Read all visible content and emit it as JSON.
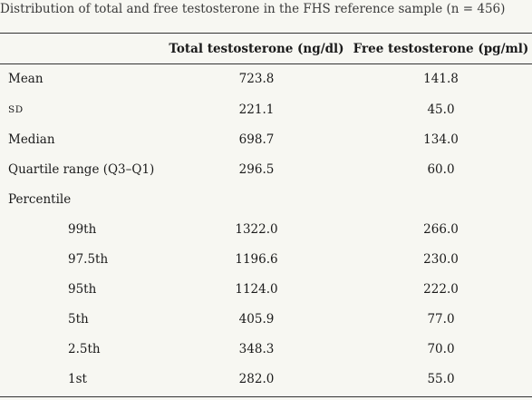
{
  "caption": "Distribution of total and free testosterone in the FHS reference sample (n = 456)",
  "table": {
    "headers": [
      "",
      "Total testosterone (ng/dl)",
      "Free testosterone (pg/ml)"
    ],
    "rows": [
      {
        "label": "Mean",
        "total": "723.8",
        "free": "141.8"
      },
      {
        "label": "SD",
        "total": "221.1",
        "free": "45.0"
      },
      {
        "label": "Median",
        "total": "698.7",
        "free": "134.0"
      },
      {
        "label": "Quartile range (Q3–Q1)",
        "total": "296.5",
        "free": "60.0"
      },
      {
        "label": "Percentile",
        "total": "",
        "free": ""
      },
      {
        "label": "99th",
        "total": "1322.0",
        "free": "266.0"
      },
      {
        "label": "97.5th",
        "total": "1196.6",
        "free": "230.0"
      },
      {
        "label": "95th",
        "total": "1124.0",
        "free": "222.0"
      },
      {
        "label": "5th",
        "total": "405.9",
        "free": "77.0"
      },
      {
        "label": "2.5th",
        "total": "348.3",
        "free": "70.0"
      },
      {
        "label": "1st",
        "total": "282.0",
        "free": "55.0"
      }
    ]
  }
}
